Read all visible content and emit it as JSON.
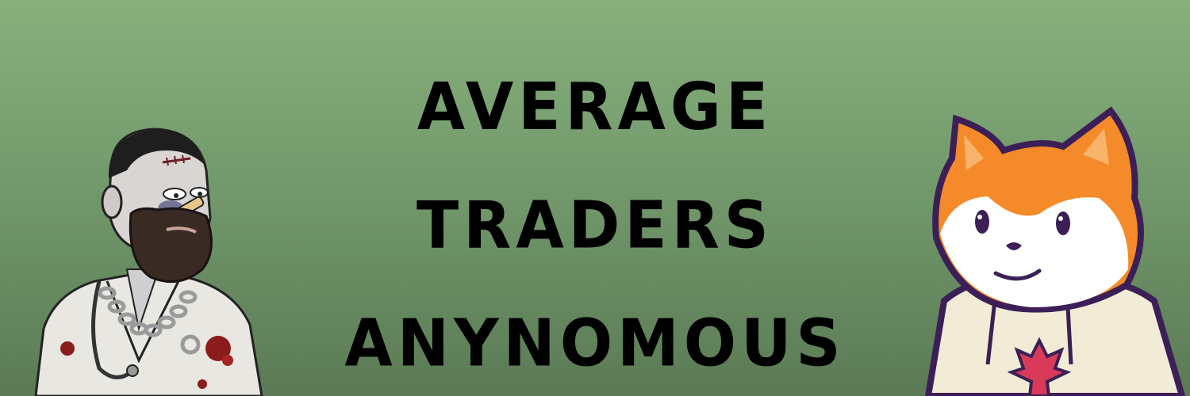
{
  "banner": {
    "title_lines": [
      "AVERAGE",
      "TRADERS",
      "ANYNOMOUS"
    ],
    "background_colors": [
      "#88b07c",
      "#5b7a55"
    ]
  },
  "characters": {
    "left": {
      "icon": "zombie-doctor-illustration-icon"
    },
    "right": {
      "icon": "cartoon-fox-in-hoodie-illustration-icon"
    }
  }
}
